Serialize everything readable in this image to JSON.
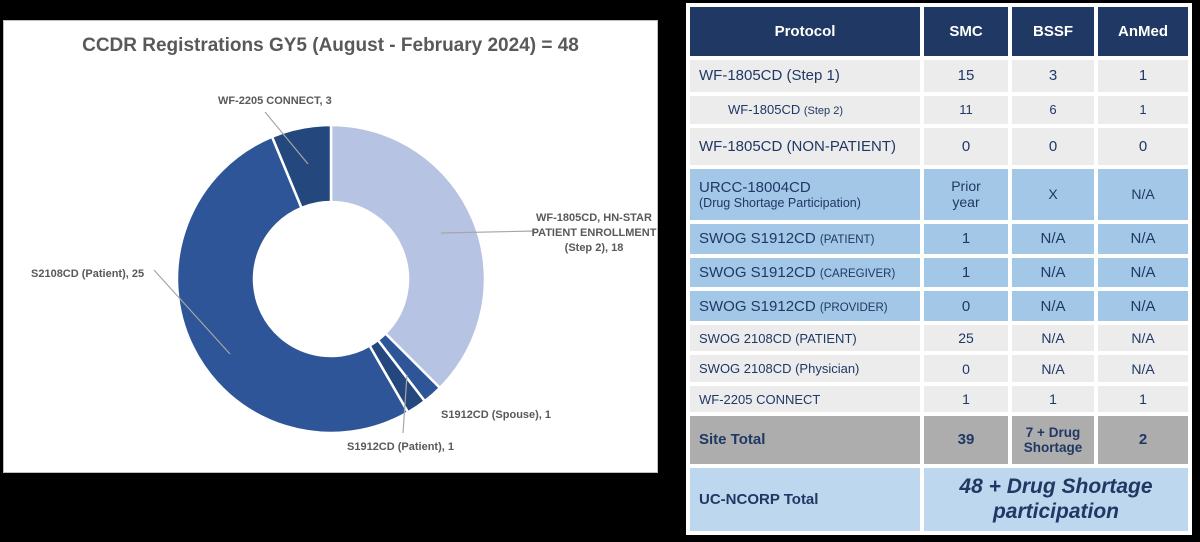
{
  "chart": {
    "title": "CCDR Registrations GY5 (August - February 2024) = 48",
    "labels": {
      "wf2205": "WF-2205 CONNECT, 3",
      "step2_line1": "WF-1805CD, HN-STAR",
      "step2_line2": "PATIENT ENROLLMENT",
      "step2_line3": "(Step 2), 18",
      "s2108": "S2108CD (Patient), 25",
      "spouse": "S1912CD (Spouse), 1",
      "patient": "S1912CD (Patient), 1"
    }
  },
  "chart_data": [
    {
      "type": "pie",
      "subtype": "donut",
      "title": "CCDR Registrations GY5 (August - February 2024) = 48",
      "total": 48,
      "start_angle_deg": 0,
      "direction": "clockwise",
      "series": [
        {
          "name": "WF-1805CD, HN-STAR PATIENT ENROLLMENT (Step 2)",
          "value": 18,
          "color": "#B7C3E2"
        },
        {
          "name": "S1912CD (Spouse)",
          "value": 1,
          "color": "#2E5597"
        },
        {
          "name": "S1912CD (Patient)",
          "value": 1,
          "color": "#24477E"
        },
        {
          "name": "S2108CD (Patient)",
          "value": 25,
          "color": "#2E5597"
        },
        {
          "name": "WF-2205 CONNECT",
          "value": 3,
          "color": "#24477E"
        }
      ]
    },
    {
      "type": "table",
      "columns": [
        "Protocol",
        "SMC",
        "BSSF",
        "AnMed"
      ],
      "rows": [
        [
          "WF-1805CD (Step 1)",
          "15",
          "3",
          "1"
        ],
        [
          "WF-1805CD (Step 2)",
          "11",
          "6",
          "1"
        ],
        [
          "WF-1805CD (NON-PATIENT)",
          "0",
          "0",
          "0"
        ],
        [
          "URCC-18004CD (Drug Shortage Participation)",
          "Prior year",
          "X",
          "N/A"
        ],
        [
          "SWOG S1912CD (PATIENT)",
          "1",
          "N/A",
          "N/A"
        ],
        [
          "SWOG S1912CD (CAREGIVER)",
          "1",
          "N/A",
          "N/A"
        ],
        [
          "SWOG S1912CD (PROVIDER)",
          "0",
          "N/A",
          "N/A"
        ],
        [
          "SWOG 2108CD (PATIENT)",
          "25",
          "N/A",
          "N/A"
        ],
        [
          "SWOG 2108CD (Physician)",
          "0",
          "N/A",
          "N/A"
        ],
        [
          "WF-2205 CONNECT",
          "1",
          "1",
          "1"
        ],
        [
          "Site Total",
          "39",
          "7 + Drug Shortage",
          "2"
        ],
        [
          "UC-NCORP Total",
          "48 + Drug Shortage participation"
        ]
      ]
    }
  ],
  "table": {
    "headers": [
      "Protocol",
      "SMC",
      "BSSF",
      "AnMed"
    ],
    "rows": [
      {
        "label": "WF-1805CD (Step 1)",
        "paren": "",
        "values": [
          "15",
          "3",
          "1"
        ]
      },
      {
        "label": "WF-1805CD",
        "paren": "(Step 2)",
        "values": [
          "11",
          "6",
          "1"
        ]
      },
      {
        "label": "WF-1805CD (NON-PATIENT)",
        "paren": "",
        "values": [
          "0",
          "0",
          "0"
        ]
      },
      {
        "label": "URCC-18004CD",
        "paren": "(Drug Shortage Participation)",
        "values": [
          "Prior year",
          "X",
          "N/A"
        ]
      },
      {
        "label": "SWOG S1912CD",
        "paren": "(PATIENT)",
        "values": [
          "1",
          "N/A",
          "N/A"
        ]
      },
      {
        "label": "SWOG S1912CD",
        "paren": "(CAREGIVER)",
        "values": [
          "1",
          "N/A",
          "N/A"
        ]
      },
      {
        "label": "SWOG S1912CD",
        "paren": "(PROVIDER)",
        "values": [
          "0",
          "N/A",
          "N/A"
        ]
      },
      {
        "label": "SWOG 2108CD (PATIENT)",
        "paren": "",
        "values": [
          "25",
          "N/A",
          "N/A"
        ]
      },
      {
        "label": "SWOG 2108CD (Physician)",
        "paren": "",
        "values": [
          "0",
          "N/A",
          "N/A"
        ]
      },
      {
        "label": "WF-2205 CONNECT",
        "paren": "",
        "values": [
          "1",
          "1",
          "1"
        ]
      },
      {
        "label": "Site Total",
        "paren": "",
        "values": [
          "39",
          "7 + Drug Shortage",
          "2"
        ]
      },
      {
        "label": "UC-NCORP Total",
        "paren": "",
        "merged": "48 + Drug Shortage participation"
      }
    ]
  },
  "colors": {
    "header_bg": "#1F3864",
    "text_navy": "#1F3864",
    "row_gray": "#ECECEC",
    "row_blue": "#A3C7E6",
    "row_total_gray": "#ADADAD",
    "row_ncorp_blue": "#BDD7EE",
    "title_gray": "#595959",
    "leader_gray": "#A6A6A6",
    "background": "#000000"
  }
}
